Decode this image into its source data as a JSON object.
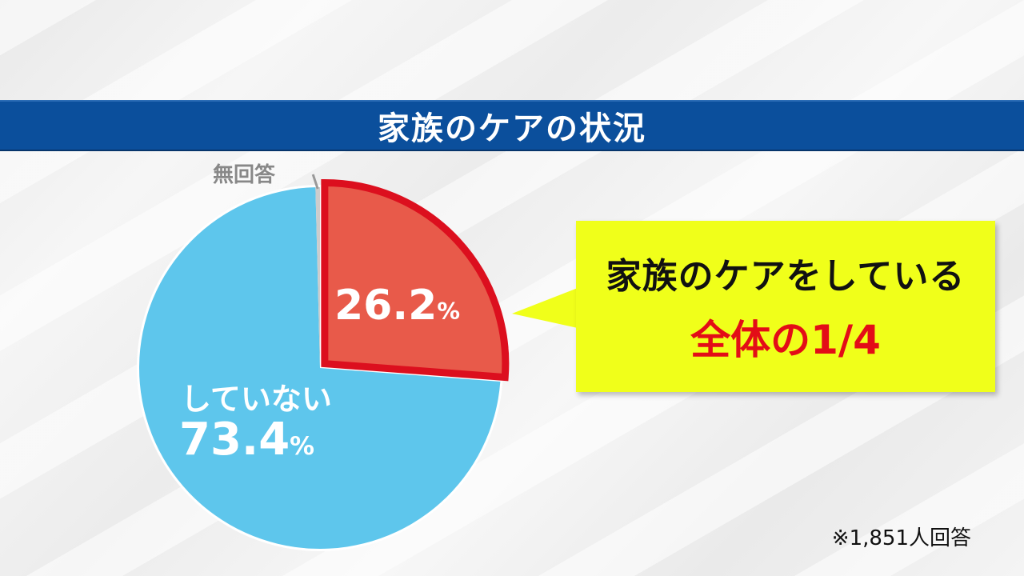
{
  "title": "家族のケアの状況",
  "chart_data": {
    "type": "pie",
    "categories": [
      "家族のケアをしている",
      "していない",
      "無回答"
    ],
    "values": [
      26.2,
      73.4,
      0.4
    ],
    "unit": "%",
    "slice_labels": [
      {
        "text": "",
        "value": "26.2",
        "unit": "%"
      },
      {
        "text": "していない",
        "value": "73.4",
        "unit": "%"
      },
      {
        "text": "無回答",
        "value": "",
        "unit": ""
      }
    ],
    "colors": {
      "caring": "#e85a4a",
      "caring_border": "#dc0f1e",
      "not_caring": "#5ec6ec",
      "no_answer": "#cccccc"
    }
  },
  "callout": {
    "line1": "家族のケアをしている",
    "line2": "全体の1/4",
    "background": "#f0ff1a",
    "accent": "#e30d17"
  },
  "note": "※1,851人回答"
}
